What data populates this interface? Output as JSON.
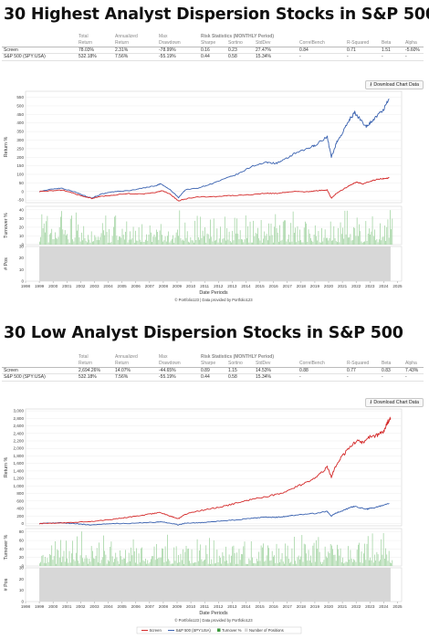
{
  "panels": [
    {
      "title": "30 Highest Analyst Dispersion Stocks in S&P 500",
      "table": {
        "group_header": "Risk Statistics (MONTHLY Period)",
        "col_top": [
          "",
          "Total",
          "Annualized",
          "Max",
          "",
          "",
          "",
          "",
          "",
          "",
          ""
        ],
        "col_bottom": [
          "",
          "Return",
          "Return",
          "Drawdown",
          "Sharpe",
          "Sortino",
          "StdDev",
          "CorrelBench",
          "R-Squared",
          "Beta",
          "Alpha"
        ],
        "rows": [
          {
            "name": "Screen",
            "total": "78.03%",
            "annualized": "2.31%",
            "drawdown": "-78.99%",
            "sharpe": "0.16",
            "sortino": "0.23",
            "stddev": "27.47%",
            "correl": "0.84",
            "rsq": "0.71",
            "beta": "1.51",
            "alpha": "-5.60%"
          },
          {
            "name": "S&P 500 (SPY:USA)",
            "total": "532.18%",
            "annualized": "7.56%",
            "drawdown": "-55.19%",
            "sharpe": "0.44",
            "sortino": "0.58",
            "stddev": "15.34%",
            "correl": "-",
            "rsq": "-",
            "beta": "-",
            "alpha": "-"
          }
        ]
      },
      "download_label": "Download Chart Data",
      "credit": "© Portfolio123 | Data provided by Portfolio123",
      "legend": null
    },
    {
      "title": "30 Low Analyst Dispersion Stocks in S&P 500",
      "table": {
        "group_header": "Risk Statistics (MONTHLY Period)",
        "col_top": [
          "",
          "Total",
          "Annualized",
          "Max",
          "",
          "",
          "",
          "",
          "",
          "",
          ""
        ],
        "col_bottom": [
          "",
          "Return",
          "Return",
          "Drawdown",
          "Sharpe",
          "Sortino",
          "StdDev",
          "CorrelBench",
          "R-Squared",
          "Beta",
          "Alpha"
        ],
        "rows": [
          {
            "name": "Screen",
            "total": "2,694.26%",
            "annualized": "14.07%",
            "drawdown": "-44.65%",
            "sharpe": "0.89",
            "sortino": "1.15",
            "stddev": "14.53%",
            "correl": "0.88",
            "rsq": "0.77",
            "beta": "0.83",
            "alpha": "7.43%"
          },
          {
            "name": "S&P 500 (SPY:USA)",
            "total": "532.18%",
            "annualized": "7.56%",
            "drawdown": "-55.19%",
            "sharpe": "0.44",
            "sortino": "0.58",
            "stddev": "15.34%",
            "correl": "-",
            "rsq": "-",
            "beta": "-",
            "alpha": "-"
          }
        ]
      },
      "download_label": "Download Chart Data",
      "credit": "© Portfolio123 | Data provided by Portfolio123",
      "legend": [
        "Screen",
        "S&P 500 (SPY:USA)",
        "Turnover %",
        "Number of Positions"
      ]
    }
  ],
  "colors": {
    "screen": "#d42a2a",
    "benchmark": "#3a62b0",
    "turnover": "#98cf98",
    "positions": "#d7d7d7",
    "negative": "#d21c1c"
  },
  "chart_data": [
    {
      "type": "line",
      "title": "30 Highest Analyst Dispersion Stocks in S&P 500",
      "xlabel": "Date Periods",
      "ylabel": "Return %",
      "x_ticks": [
        "1998",
        "1999",
        "2000",
        "2001",
        "2002",
        "2003",
        "2004",
        "2005",
        "2006",
        "2007",
        "2008",
        "2009",
        "2010",
        "2011",
        "2012",
        "2013",
        "2014",
        "2015",
        "2016",
        "2017",
        "2018",
        "2019",
        "2020",
        "2021",
        "2022",
        "2023",
        "2024",
        "2025"
      ],
      "x_range": [
        1998,
        2025.3
      ],
      "y_ticks": [
        -50,
        0,
        50,
        100,
        150,
        200,
        250,
        300,
        350,
        400,
        450,
        500,
        550
      ],
      "ylim": [
        -65,
        585
      ],
      "series": [
        {
          "name": "Screen",
          "color": "#d42a2a",
          "x": [
            1999.0,
            2000.0,
            2000.7,
            2001.5,
            2002.0,
            2002.8,
            2003.5,
            2004.5,
            2005.5,
            2006.5,
            2007.5,
            2007.9,
            2008.5,
            2009.1,
            2009.5,
            2010.5,
            2011.5,
            2012.5,
            2013.5,
            2014.5,
            2015.5,
            2016.2,
            2016.8,
            2017.5,
            2018.5,
            2019.2,
            2019.9,
            2020.2,
            2020.5,
            2021.0,
            2021.5,
            2022.0,
            2022.5,
            2023.0,
            2023.5,
            2024.0,
            2024.4
          ],
          "y": [
            0,
            5,
            8,
            -10,
            -25,
            -40,
            -28,
            -20,
            -12,
            -15,
            -5,
            5,
            -15,
            -55,
            -45,
            -30,
            -32,
            -25,
            -22,
            -18,
            -10,
            -12,
            -5,
            0,
            -2,
            5,
            10,
            -40,
            -15,
            10,
            35,
            55,
            45,
            60,
            70,
            75,
            80
          ]
        },
        {
          "name": "S&P 500 (SPY:USA)",
          "color": "#3a62b0",
          "x": [
            1999.0,
            2000.0,
            2000.6,
            2001.5,
            2002.3,
            2002.8,
            2003.5,
            2004.5,
            2005.5,
            2006.5,
            2007.5,
            2007.8,
            2008.5,
            2009.1,
            2009.6,
            2010.5,
            2011.5,
            2012.5,
            2013.5,
            2014.5,
            2015.5,
            2016.2,
            2016.8,
            2017.5,
            2018.5,
            2019.0,
            2019.9,
            2020.2,
            2020.6,
            2021.0,
            2021.5,
            2021.9,
            2022.7,
            2023.0,
            2023.5,
            2024.0,
            2024.4
          ],
          "y": [
            0,
            15,
            20,
            0,
            -25,
            -38,
            -15,
            0,
            5,
            20,
            35,
            45,
            10,
            -35,
            10,
            20,
            45,
            75,
            105,
            150,
            170,
            165,
            185,
            220,
            250,
            270,
            320,
            200,
            290,
            340,
            420,
            460,
            380,
            400,
            440,
            480,
            540
          ]
        }
      ],
      "turnover": {
        "label": "Turnover %",
        "y_ticks": [
          0,
          10,
          20,
          30,
          40
        ],
        "ylim": [
          0,
          44
        ]
      },
      "positions": {
        "label": "# Pos",
        "y_ticks": [
          0,
          10,
          20,
          30
        ],
        "ylim": [
          0,
          30
        ],
        "value": 30
      }
    },
    {
      "type": "line",
      "title": "30 Low Analyst Dispersion Stocks in S&P 500",
      "xlabel": "Date Periods",
      "ylabel": "Return %",
      "x_ticks": [
        "1998",
        "1999",
        "2000",
        "2001",
        "2002",
        "2003",
        "2004",
        "2005",
        "2006",
        "2007",
        "2008",
        "2009",
        "2010",
        "2011",
        "2012",
        "2013",
        "2014",
        "2015",
        "2016",
        "2017",
        "2018",
        "2019",
        "2020",
        "2021",
        "2022",
        "2023",
        "2024",
        "2025"
      ],
      "x_range": [
        1998,
        2025.3
      ],
      "y_ticks": [
        0,
        200,
        400,
        600,
        800,
        1000,
        1200,
        1400,
        1600,
        1800,
        2000,
        2200,
        2400,
        2600,
        2800,
        3000
      ],
      "ylim": [
        -60,
        3050
      ],
      "series": [
        {
          "name": "Screen",
          "color": "#d42a2a",
          "x": [
            1999.0,
            2000.0,
            2001.0,
            2002.0,
            2003.0,
            2004.0,
            2005.0,
            2006.0,
            2007.0,
            2007.8,
            2008.5,
            2009.1,
            2009.6,
            2010.5,
            2011.5,
            2012.5,
            2013.5,
            2014.5,
            2015.5,
            2016.5,
            2017.5,
            2018.5,
            2019.3,
            2019.9,
            2020.2,
            2020.6,
            2021.0,
            2021.5,
            2022.0,
            2022.5,
            2023.0,
            2023.5,
            2024.0,
            2024.3,
            2024.5
          ],
          "y": [
            0,
            10,
            25,
            40,
            60,
            100,
            150,
            190,
            250,
            290,
            200,
            130,
            250,
            330,
            400,
            470,
            560,
            650,
            720,
            800,
            960,
            1100,
            1300,
            1500,
            1250,
            1600,
            1800,
            2000,
            2200,
            2150,
            2300,
            2350,
            2450,
            2700,
            2800
          ]
        },
        {
          "name": "S&P 500 (SPY:USA)",
          "color": "#3a62b0",
          "x": [
            1999.0,
            2000.0,
            2000.6,
            2001.5,
            2002.3,
            2002.8,
            2003.5,
            2004.5,
            2005.5,
            2006.5,
            2007.5,
            2007.8,
            2008.5,
            2009.1,
            2009.6,
            2010.5,
            2011.5,
            2012.5,
            2013.5,
            2014.5,
            2015.5,
            2016.2,
            2016.8,
            2017.5,
            2018.5,
            2019.0,
            2019.9,
            2020.2,
            2020.6,
            2021.0,
            2021.5,
            2021.9,
            2022.7,
            2023.0,
            2023.5,
            2024.0,
            2024.4
          ],
          "y": [
            0,
            15,
            20,
            0,
            -25,
            -38,
            -15,
            0,
            5,
            20,
            35,
            45,
            10,
            -35,
            10,
            20,
            45,
            75,
            105,
            150,
            170,
            165,
            185,
            220,
            250,
            270,
            320,
            200,
            290,
            340,
            420,
            460,
            380,
            400,
            440,
            480,
            540
          ]
        }
      ],
      "turnover": {
        "label": "Turnover %",
        "y_ticks": [
          0,
          20,
          40,
          60,
          80
        ],
        "ylim": [
          0,
          88
        ]
      },
      "positions": {
        "label": "# Pos",
        "y_ticks": [
          0,
          10,
          20,
          30
        ],
        "ylim": [
          0,
          30
        ],
        "value": 30
      }
    }
  ]
}
